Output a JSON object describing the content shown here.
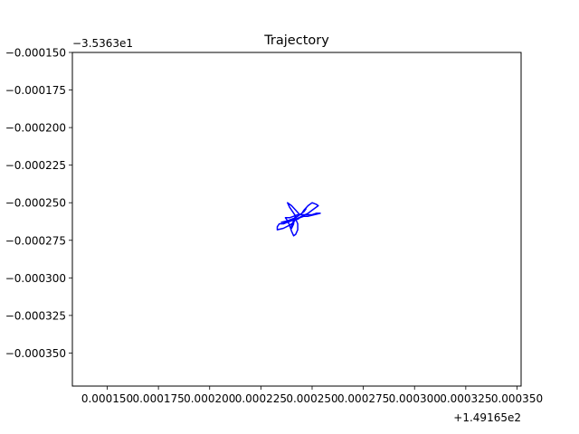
{
  "chart_data": {
    "type": "line",
    "title": "Trajectory",
    "xlabel": "",
    "ylabel": "",
    "x_offset_label": "+1.49165e2",
    "y_offset_label": "−3.5363e1",
    "xlim": [
      0.000133,
      0.000352
    ],
    "ylim": [
      -0.000372,
      -0.00015
    ],
    "x_ticks": [
      0.00015,
      0.000175,
      0.0002,
      0.000225,
      0.00025,
      0.000275,
      0.0003,
      0.000325,
      0.00035
    ],
    "x_tick_labels": [
      "0.000150",
      "0.000175",
      "0.000200",
      "0.000225",
      "0.000250",
      "0.000275",
      "0.000300",
      "0.000325",
      "0.000350"
    ],
    "y_ticks": [
      -0.00015,
      -0.000175,
      -0.0002,
      -0.000225,
      -0.00025,
      -0.000275,
      -0.0003,
      -0.000325,
      -0.00035
    ],
    "y_tick_labels": [
      "−0.000150",
      "−0.000175",
      "−0.000200",
      "−0.000225",
      "−0.000250",
      "−0.000275",
      "−0.000300",
      "−0.000325",
      "−0.000350"
    ],
    "grid": false,
    "series": [
      {
        "color": "#0000ff",
        "x": [
          0.000242,
          0.000239,
          0.000238,
          0.00024,
          0.000242,
          0.000244,
          0.000245,
          0.000246,
          0.000248,
          0.00025,
          0.000252,
          0.000253,
          0.00025,
          0.000248,
          0.000245,
          0.000242,
          0.00024,
          0.000238,
          0.000236,
          0.000234,
          0.000233,
          0.000233,
          0.000236,
          0.000239,
          0.000241,
          0.000242,
          0.000243,
          0.000243,
          0.000242,
          0.000241,
          0.00024,
          0.000239,
          0.000238,
          0.000237,
          0.000239,
          0.000241,
          0.000243,
          0.000245,
          0.000247,
          0.00025,
          0.000252,
          0.000254,
          0.000251,
          0.000248,
          0.000246,
          0.000244,
          0.000243,
          0.000242,
          0.00024,
          0.000238,
          0.000236,
          0.000235,
          0.000238,
          0.00024,
          0.000242,
          0.000244,
          0.000246,
          0.000247,
          0.000246,
          0.000244,
          0.000243,
          0.000242,
          0.000241,
          0.00024,
          0.00024,
          0.000241,
          0.000241,
          0.000242
        ],
        "y": [
          -0.000259,
          -0.000253,
          -0.00025,
          -0.000252,
          -0.000255,
          -0.000258,
          -0.000257,
          -0.000255,
          -0.000252,
          -0.00025,
          -0.000251,
          -0.000252,
          -0.000255,
          -0.000257,
          -0.000259,
          -0.000261,
          -0.000262,
          -0.000263,
          -0.000264,
          -0.000264,
          -0.000266,
          -0.000268,
          -0.000267,
          -0.000265,
          -0.000263,
          -0.000261,
          -0.000264,
          -0.000268,
          -0.000271,
          -0.000272,
          -0.000269,
          -0.000265,
          -0.000262,
          -0.00026,
          -0.00026,
          -0.000259,
          -0.000258,
          -0.000258,
          -0.000258,
          -0.000258,
          -0.000257,
          -0.000257,
          -0.000258,
          -0.000259,
          -0.000259,
          -0.00026,
          -0.000261,
          -0.000261,
          -0.000262,
          -0.000263,
          -0.000263,
          -0.000263,
          -0.000262,
          -0.000261,
          -0.00026,
          -0.000258,
          -0.000256,
          -0.000254,
          -0.000256,
          -0.000258,
          -0.000259,
          -0.00026,
          -0.000262,
          -0.000265,
          -0.000267,
          -0.000264,
          -0.000261,
          -0.000259
        ]
      }
    ]
  }
}
